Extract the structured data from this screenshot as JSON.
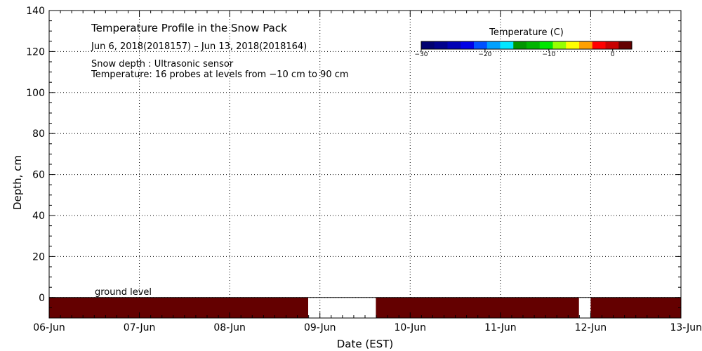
{
  "chart_data": {
    "type": "heatmap",
    "title": "Temperature Profile in the Snow Pack",
    "subtitle": "Jun  6, 2018(2018157) – Jun 13, 2018(2018164)",
    "notes": [
      "Snow depth : Ultrasonic sensor",
      "Temperature: 16 probes at levels from −10 cm to 90 cm"
    ],
    "xlabel": "Date (EST)",
    "ylabel": "Depth, cm",
    "x_ticks": [
      "06-Jun",
      "07-Jun",
      "08-Jun",
      "09-Jun",
      "10-Jun",
      "11-Jun",
      "12-Jun",
      "13-Jun"
    ],
    "x_range_days": [
      0,
      7
    ],
    "ylim": [
      -10,
      140
    ],
    "y_ticks": [
      0,
      20,
      40,
      60,
      80,
      100,
      120,
      140
    ],
    "grid": true,
    "ground_label": "ground level",
    "colorbar": {
      "title": "Temperature (C)",
      "range": [
        -30,
        3
      ],
      "ticks": [
        "-30",
        "-20",
        "-10",
        "0"
      ],
      "tick_values": [
        -30,
        -20,
        -10,
        0
      ],
      "colors": [
        "#000070",
        "#00008c",
        "#0000b4",
        "#0000e6",
        "#0050ff",
        "#00a0ff",
        "#00e6ff",
        "#009600",
        "#00b400",
        "#00e600",
        "#96ff00",
        "#ffff00",
        "#ffa000",
        "#ff0000",
        "#c80000",
        "#640000"
      ]
    },
    "temperature_bands": [
      {
        "start_day": 0.0,
        "end_day": 2.87,
        "depth_top": 0,
        "depth_bottom": -10,
        "color": "#640000"
      },
      {
        "start_day": 3.62,
        "end_day": 5.87,
        "depth_top": 0,
        "depth_bottom": -10,
        "color": "#640000"
      },
      {
        "start_day": 6.0,
        "end_day": 7.0,
        "depth_top": 0,
        "depth_bottom": -10,
        "color": "#640000"
      }
    ]
  }
}
